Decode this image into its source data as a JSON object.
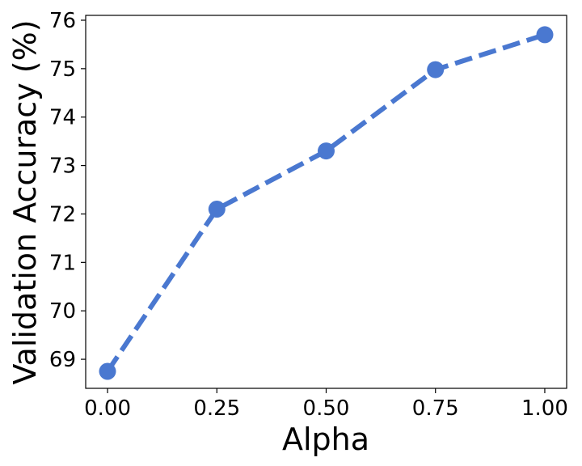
{
  "chart_data": {
    "type": "line",
    "title": "",
    "xlabel": "Alpha",
    "ylabel": "Validation Accuracy (%)",
    "x": [
      0.0,
      0.25,
      0.5,
      0.75,
      1.0
    ],
    "series": [
      {
        "values": [
          68.75,
          72.1,
          73.3,
          74.98,
          75.7
        ],
        "color": "#4a78d0",
        "line_style": "dashed",
        "marker": "circle"
      }
    ],
    "xlim": [
      -0.05,
      1.05
    ],
    "ylim": [
      68.4,
      76.1
    ],
    "x_ticks": [
      0.0,
      0.25,
      0.5,
      0.75,
      1.0
    ],
    "x_tick_labels": [
      "0.00",
      "0.25",
      "0.50",
      "0.75",
      "1.00"
    ],
    "y_ticks": [
      69,
      70,
      71,
      72,
      73,
      74,
      75,
      76
    ],
    "y_tick_labels": [
      "69",
      "70",
      "71",
      "72",
      "73",
      "74",
      "75",
      "76"
    ],
    "grid": false,
    "legend": "none"
  }
}
